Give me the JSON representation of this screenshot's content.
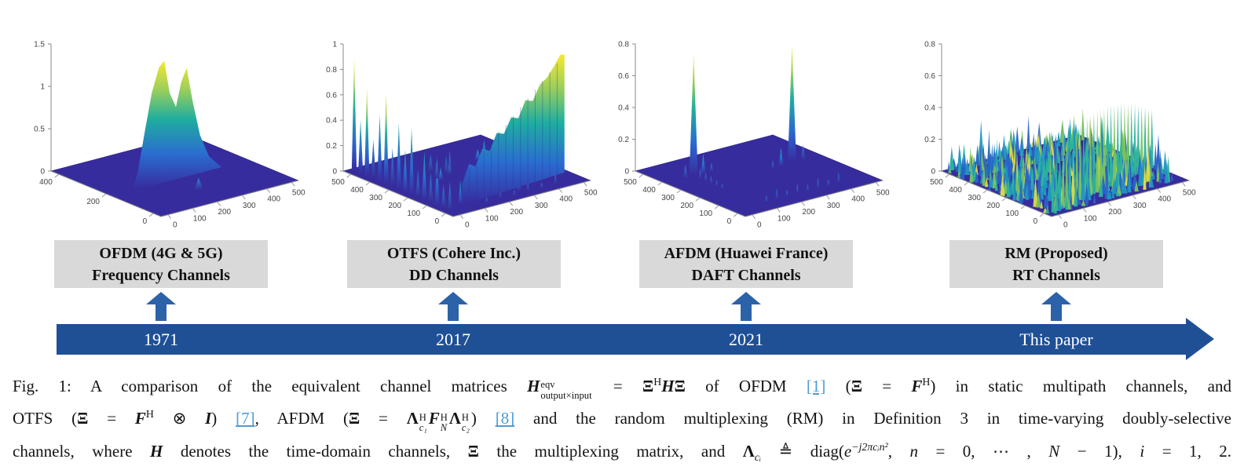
{
  "colors": {
    "timeline_blue": "#1f5096",
    "arrow_blue": "#2c62a8",
    "box_gray": "#d9d9d9",
    "link_blue": "#4f9bd5",
    "floor_blue": "#372c9e",
    "tick_gray": "#444444",
    "surface_gradient": [
      "#f8e832",
      "#9ccf5a",
      "#1fae9f",
      "#2a6cd0",
      "#38299c"
    ],
    "noise_palette": [
      "#2a63c8",
      "#2196c2",
      "#2eb39b",
      "#79c25f",
      "#ddda45"
    ]
  },
  "plots": [
    {
      "id": "ofdm",
      "surface": "ridge",
      "z_ticks": [
        "1.5",
        "1",
        "0.5",
        "0"
      ],
      "left_ticks": [
        "400",
        "200",
        "0"
      ],
      "right_ticks": [
        "0",
        "100",
        "200",
        "300",
        "400",
        "500"
      ]
    },
    {
      "id": "otfs",
      "surface": "spikes-diagonal",
      "z_ticks": [
        "1",
        "0.8",
        "0.6",
        "0.4",
        "0.2",
        "0"
      ],
      "left_ticks": [
        "500",
        "400",
        "300",
        "200",
        "100",
        "0"
      ],
      "right_ticks": [
        "0",
        "100",
        "200",
        "300",
        "400",
        "500"
      ]
    },
    {
      "id": "afdm",
      "surface": "two-spikes",
      "z_ticks": [
        "0.8",
        "0.6",
        "0.4",
        "0.2",
        "0"
      ],
      "left_ticks": [
        "500",
        "400",
        "300",
        "200",
        "100",
        "0"
      ],
      "right_ticks": [
        "0",
        "100",
        "200",
        "300",
        "400",
        "500"
      ]
    },
    {
      "id": "rm",
      "surface": "noise",
      "z_ticks": [
        "0.8",
        "0.6",
        "0.4",
        "0.2",
        "0"
      ],
      "left_ticks": [
        "500",
        "400",
        "300",
        "200",
        "100",
        "0"
      ],
      "right_ticks": [
        "0",
        "100",
        "200",
        "300",
        "400",
        "500"
      ]
    }
  ],
  "labels": [
    {
      "line1": "OFDM (4G & 5G)",
      "line2": "Frequency Channels"
    },
    {
      "line1": "OTFS (Cohere Inc.)",
      "line2": "DD Channels"
    },
    {
      "line1": "AFDM (Huawei France)",
      "line2": "DAFT Channels"
    },
    {
      "line1": "RM (Proposed)",
      "line2": "RT Channels"
    }
  ],
  "timeline": {
    "entries": [
      "1971",
      "2017",
      "2021",
      "This paper"
    ]
  },
  "caption": {
    "lines": [
      [
        {
          "s": "p",
          "t": "Fig. 1: A comparison of the equivalent channel matrices "
        },
        {
          "s": "bi",
          "t": "H"
        },
        {
          "s": "stk",
          "sup": "eqv",
          "sub": "output×input",
          "rs": true
        },
        {
          "s": "p",
          "t": " = "
        },
        {
          "s": "b",
          "t": "Ξ"
        },
        {
          "s": "sup",
          "t": "H"
        },
        {
          "s": "bi",
          "t": "H"
        },
        {
          "s": "b",
          "t": "Ξ"
        },
        {
          "s": "p",
          "t": " of OFDM "
        },
        {
          "s": "lnk",
          "t": "[1]"
        },
        {
          "s": "p",
          "t": " ("
        },
        {
          "s": "b",
          "t": "Ξ"
        },
        {
          "s": "p",
          "t": " = "
        },
        {
          "s": "bi",
          "t": "F"
        },
        {
          "s": "sup",
          "t": "H"
        },
        {
          "s": "p",
          "t": ") in static multipath channels, and"
        }
      ],
      [
        {
          "s": "p",
          "t": "OTFS ("
        },
        {
          "s": "b",
          "t": "Ξ"
        },
        {
          "s": "p",
          "t": " = "
        },
        {
          "s": "bi",
          "t": "F"
        },
        {
          "s": "sup",
          "t": "H"
        },
        {
          "s": "p",
          "t": " ⊗ "
        },
        {
          "s": "bi",
          "t": "I"
        },
        {
          "s": "p",
          "t": ") "
        },
        {
          "s": "lnk",
          "t": "[7]"
        },
        {
          "s": "p",
          "t": ", AFDM ("
        },
        {
          "s": "b",
          "t": "Ξ"
        },
        {
          "s": "p",
          "t": " = "
        },
        {
          "s": "b",
          "t": "Λ"
        },
        {
          "s": "stk",
          "sup": "H",
          "sub": "c₁"
        },
        {
          "s": "bi",
          "t": "F"
        },
        {
          "s": "stk",
          "sup": "H",
          "sub": "N"
        },
        {
          "s": "b",
          "t": "Λ"
        },
        {
          "s": "stk",
          "sup": "H",
          "sub": "c₂"
        },
        {
          "s": "p",
          "t": ") "
        },
        {
          "s": "lnk",
          "t": "[8]"
        },
        {
          "s": "p",
          "t": " and the random multiplexing (RM) in Definition 3 in time-varying doubly-selective"
        }
      ],
      [
        {
          "s": "p",
          "t": "channels, where "
        },
        {
          "s": "bi",
          "t": "H"
        },
        {
          "s": "p",
          "t": " denotes the time-domain channels, "
        },
        {
          "s": "b",
          "t": "Ξ"
        },
        {
          "s": "p",
          "t": " the multiplexing matrix, and "
        },
        {
          "s": "b",
          "t": "Λ"
        },
        {
          "s": "sub",
          "t": "cᵢ"
        },
        {
          "s": "p",
          "t": " ≜ diag("
        },
        {
          "s": "i",
          "t": "e"
        },
        {
          "s": "supi",
          "t": "−j2πcᵢn²"
        },
        {
          "s": "p",
          "t": ", "
        },
        {
          "s": "i",
          "t": "n"
        },
        {
          "s": "p",
          "t": " = 0, ⋯ , "
        },
        {
          "s": "i",
          "t": "N"
        },
        {
          "s": "p",
          "t": " − 1), "
        },
        {
          "s": "i",
          "t": "i"
        },
        {
          "s": "p",
          "t": " = 1, 2."
        }
      ]
    ]
  }
}
